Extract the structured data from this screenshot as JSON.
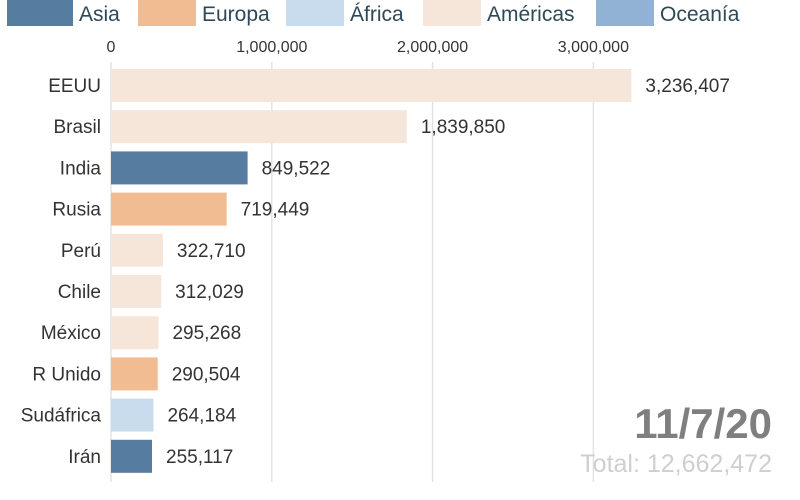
{
  "chart_data": {
    "type": "bar",
    "orientation": "horizontal",
    "legend": [
      {
        "name": "Asia",
        "color": "#567da0"
      },
      {
        "name": "Europa",
        "color": "#f2bc92"
      },
      {
        "name": "África",
        "color": "#c9dced"
      },
      {
        "name": "Américas",
        "color": "#f6e6da"
      },
      {
        "name": "Oceanía",
        "color": "#92b2d5"
      }
    ],
    "legend_position": "top",
    "xlim": [
      0,
      3400000
    ],
    "x_ticks": [
      0,
      1000000,
      2000000,
      3000000
    ],
    "x_tick_labels": [
      "0",
      "1,000,000",
      "2,000,000",
      "3,000,000"
    ],
    "grid": true,
    "bars": [
      {
        "label": "EEUU",
        "value": 3236407,
        "value_label": "3,236,407",
        "region": "Américas"
      },
      {
        "label": "Brasil",
        "value": 1839850,
        "value_label": "1,839,850",
        "region": "Américas"
      },
      {
        "label": "India",
        "value": 849522,
        "value_label": "849,522",
        "region": "Asia"
      },
      {
        "label": "Rusia",
        "value": 719449,
        "value_label": "719,449",
        "region": "Europa"
      },
      {
        "label": "Perú",
        "value": 322710,
        "value_label": "322,710",
        "region": "Américas"
      },
      {
        "label": "Chile",
        "value": 312029,
        "value_label": "312,029",
        "region": "Américas"
      },
      {
        "label": "México",
        "value": 295268,
        "value_label": "295,268",
        "region": "Américas"
      },
      {
        "label": "R Unido",
        "value": 290504,
        "value_label": "290,504",
        "region": "Europa"
      },
      {
        "label": "Sudáfrica",
        "value": 264184,
        "value_label": "264,184",
        "region": "África"
      },
      {
        "label": "Irán",
        "value": 255117,
        "value_label": "255,117",
        "region": "Asia"
      }
    ],
    "date": "11/7/20",
    "total": "Total: 12,662,472"
  }
}
